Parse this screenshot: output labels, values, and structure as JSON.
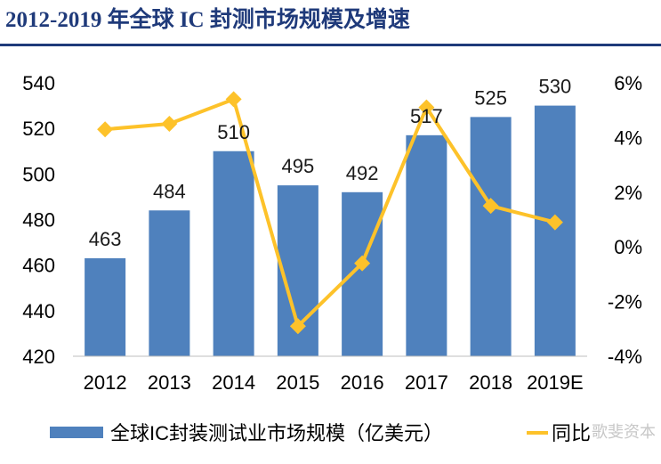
{
  "title": "2012-2019 年全球 IC 封测市场规模及增速",
  "legend": {
    "series1_label": "全球IC封装测试业市场规模（亿美元）",
    "series2_label": "同比",
    "watermark": "歌斐资本"
  },
  "colors": {
    "bar": "#4f81bd",
    "line": "#fdc22a",
    "title": "#1f3a7a"
  },
  "chart_data": {
    "type": "bar",
    "categories": [
      "2012",
      "2013",
      "2014",
      "2015",
      "2016",
      "2017",
      "2018",
      "2019E"
    ],
    "series": [
      {
        "name": "全球IC封装测试业市场规模（亿美元）",
        "type": "bar",
        "axis": "left",
        "values": [
          463,
          484,
          510,
          495,
          492,
          517,
          525,
          530
        ]
      },
      {
        "name": "同比",
        "type": "line",
        "axis": "right",
        "values": [
          4.3,
          4.5,
          5.4,
          -2.9,
          -0.6,
          5.1,
          1.5,
          0.9
        ]
      }
    ],
    "y_left": {
      "min": 420,
      "max": 540,
      "step": 20,
      "ticks": [
        "420",
        "440",
        "460",
        "480",
        "500",
        "520",
        "540"
      ]
    },
    "y_right": {
      "min": -4,
      "max": 6,
      "step": 2,
      "ticks": [
        "-4%",
        "-2%",
        "0%",
        "2%",
        "4%",
        "6%"
      ]
    },
    "data_labels": [
      "463",
      "484",
      "510",
      "495",
      "492",
      "517",
      "525",
      "530"
    ],
    "grid": false,
    "legend_position": "bottom"
  }
}
